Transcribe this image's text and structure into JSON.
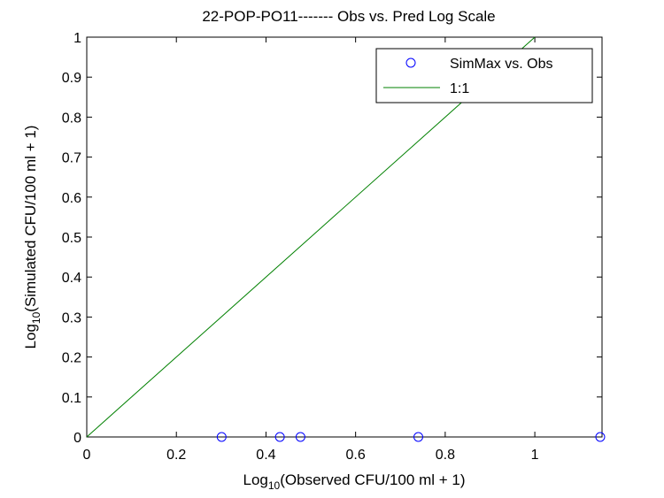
{
  "chart_data": {
    "type": "scatter",
    "title": "22-POP-PO11------- Obs vs. Pred Log Scale",
    "xlabel": {
      "prefix": "Log",
      "sub": "10",
      "suffix": "(Observed CFU/100 ml + 1)"
    },
    "ylabel": {
      "prefix": "Log",
      "sub": "10",
      "suffix": "(Simulated CFU/100 ml + 1)"
    },
    "xlim": [
      0,
      1.15
    ],
    "ylim": [
      0,
      1
    ],
    "xticks": [
      0,
      0.2,
      0.4,
      0.6,
      0.8,
      1
    ],
    "xtick_labels": [
      "0",
      "0.2",
      "0.4",
      "0.6",
      "0.8",
      "1"
    ],
    "yticks": [
      0,
      0.1,
      0.2,
      0.3,
      0.4,
      0.5,
      0.6,
      0.7,
      0.8,
      0.9,
      1
    ],
    "ytick_labels": [
      "0",
      "0.1",
      "0.2",
      "0.3",
      "0.4",
      "0.5",
      "0.6",
      "0.7",
      "0.8",
      "0.9",
      "1"
    ],
    "grid": false,
    "legend_position": "top-right",
    "series": [
      {
        "name": "SimMax vs. Obs",
        "kind": "markers",
        "marker": "circle",
        "color": "#0000ff",
        "x": [
          0.301,
          0.431,
          0.477,
          0.74,
          1.146
        ],
        "y": [
          0,
          0,
          0,
          0,
          0
        ]
      },
      {
        "name": "1:1",
        "kind": "line",
        "color": "#008000",
        "x": [
          0,
          1
        ],
        "y": [
          0,
          1
        ]
      }
    ]
  }
}
